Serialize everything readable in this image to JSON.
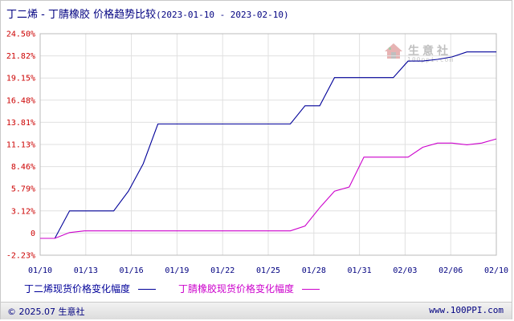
{
  "title": {
    "main": "丁二烯 - 丁腈橡胶 价格趋势比较",
    "range": "(2023-01-10 - 2023-02-10)"
  },
  "watermark": {
    "name": "生意社",
    "sub": "100ppi.com"
  },
  "footer": {
    "left": "© 2025.07 生意社",
    "right": "www.100PPI.com"
  },
  "colors": {
    "series1": "#000099",
    "series2": "#cc00cc",
    "grid": "#e0e0e0",
    "axis": "#bbbbbb",
    "ytick": "#cc0000",
    "xtick": "#000080"
  },
  "chart_data": {
    "type": "line",
    "x_ticks": [
      "01/10",
      "01/13",
      "01/16",
      "01/19",
      "01/22",
      "01/25",
      "01/28",
      "01/31",
      "02/03",
      "02/06",
      "02/10"
    ],
    "y_ticks": [
      "24.50%",
      "21.82%",
      "19.15%",
      "16.48%",
      "13.81%",
      "11.13%",
      "8.46%",
      "5.79%",
      "3.12%",
      "0",
      "-2.23%"
    ],
    "ylim": [
      -2.23,
      24.5
    ],
    "xlim": [
      "2023-01-10",
      "2023-02-10"
    ],
    "grid": true,
    "legend": "bottom",
    "series": [
      {
        "name": "丁二烯现货价格变化幅度",
        "points": [
          [
            "2023-01-10",
            -0.2
          ],
          [
            "2023-01-11",
            -0.2
          ],
          [
            "2023-01-12",
            3.12
          ],
          [
            "2023-01-15",
            3.12
          ],
          [
            "2023-01-16",
            5.5
          ],
          [
            "2023-01-17",
            8.8
          ],
          [
            "2023-01-18",
            13.6
          ],
          [
            "2023-01-27",
            13.6
          ],
          [
            "2023-01-28",
            15.8
          ],
          [
            "2023-01-29",
            15.8
          ],
          [
            "2023-01-30",
            19.2
          ],
          [
            "2023-02-03",
            19.2
          ],
          [
            "2023-02-04",
            21.2
          ],
          [
            "2023-02-05",
            21.2
          ],
          [
            "2023-02-06",
            21.4
          ],
          [
            "2023-02-07",
            21.7
          ],
          [
            "2023-02-08",
            22.3
          ],
          [
            "2023-02-10",
            22.3
          ]
        ]
      },
      {
        "name": "丁腈橡胶现货价格变化幅度",
        "points": [
          [
            "2023-01-10",
            -0.2
          ],
          [
            "2023-01-11",
            -0.2
          ],
          [
            "2023-01-12",
            0.5
          ],
          [
            "2023-01-13",
            0.7
          ],
          [
            "2023-01-27",
            0.7
          ],
          [
            "2023-01-28",
            1.3
          ],
          [
            "2023-01-29",
            3.5
          ],
          [
            "2023-01-30",
            5.5
          ],
          [
            "2023-01-31",
            6.0
          ],
          [
            "2023-02-01",
            9.6
          ],
          [
            "2023-02-04",
            9.6
          ],
          [
            "2023-02-05",
            10.8
          ],
          [
            "2023-02-06",
            11.3
          ],
          [
            "2023-02-07",
            11.3
          ],
          [
            "2023-02-08",
            11.1
          ],
          [
            "2023-02-09",
            11.3
          ],
          [
            "2023-02-10",
            11.8
          ]
        ]
      }
    ]
  }
}
